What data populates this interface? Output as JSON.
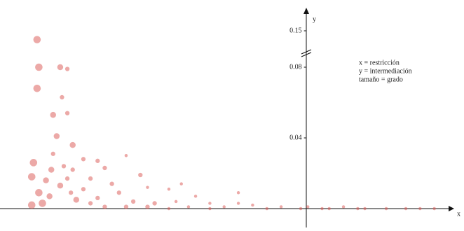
{
  "chart_data": {
    "type": "scatter",
    "x_label": "x",
    "y_label": "y",
    "annotations": [
      "x = restricción",
      "y = intermediación",
      "tamaño = grado"
    ],
    "xlim": [
      -1.6,
      0.8
    ],
    "ylim": [
      0,
      0.15
    ],
    "yticks": [
      0.04,
      0.08,
      0.15
    ],
    "series": [
      {
        "color": "#d9534f",
        "x": [
          -1.51,
          -1.5,
          -1.51,
          -1.38,
          -1.34,
          -1.37,
          -1.42,
          -1.34,
          -1.4,
          -1.31,
          -1.53,
          -1.54,
          -1.43,
          -1.36,
          -1.31,
          -1.25,
          -1.17,
          -1.01,
          -1.13,
          -1.09,
          -0.93,
          -0.77,
          -0.7,
          -1.5,
          -1.44,
          -1.48,
          -1.54,
          -1.29,
          -1.21,
          -1.05,
          -0.97,
          -0.85,
          -0.73,
          -0.54,
          -0.38,
          -0.3,
          -0.14,
          -0.03,
          0.09,
          0.21,
          0.33,
          0.45,
          0.56,
          0.72,
          -1.46,
          -1.38,
          -1.32,
          -1.25,
          -1.17,
          -1.13,
          -1.01,
          -0.89,
          -0.77,
          -0.66,
          -0.46,
          -1.34,
          -1.42,
          -1.21,
          -0.89,
          -0.62,
          -0.38,
          -0.54,
          -0.22,
          0.01,
          0.64,
          0.13,
          0.29
        ],
        "values": [
          0.133,
          0.08,
          0.068,
          0.08,
          0.079,
          0.063,
          0.053,
          0.054,
          0.041,
          0.036,
          0.026,
          0.018,
          0.022,
          0.024,
          0.022,
          0.028,
          0.027,
          0.03,
          0.023,
          0.014,
          0.019,
          0.011,
          0.014,
          0.009,
          0.007,
          0.003,
          0.002,
          0.005,
          0.003,
          0.009,
          0.004,
          0.003,
          0.004,
          0.003,
          0.003,
          0.002,
          0.001,
          0,
          0,
          0.001,
          0,
          0,
          0,
          0,
          0.016,
          0.013,
          0.009,
          0.011,
          0.006,
          0.001,
          0.001,
          0.001,
          0,
          0.001,
          0.001,
          0.017,
          0.031,
          0.017,
          0.012,
          0.007,
          0.009,
          0,
          0,
          0.001,
          0,
          0,
          0
        ],
        "sizes": [
          28,
          28,
          28,
          18,
          10,
          10,
          18,
          10,
          18,
          18,
          28,
          28,
          18,
          10,
          10,
          10,
          10,
          5,
          10,
          10,
          10,
          5,
          5,
          28,
          18,
          28,
          28,
          18,
          10,
          10,
          10,
          10,
          5,
          5,
          5,
          5,
          5,
          5,
          5,
          5,
          5,
          5,
          5,
          5,
          18,
          18,
          10,
          10,
          10,
          10,
          10,
          10,
          5,
          5,
          5,
          10,
          10,
          10,
          5,
          5,
          5,
          5,
          5,
          5,
          5,
          5,
          5
        ]
      }
    ]
  }
}
